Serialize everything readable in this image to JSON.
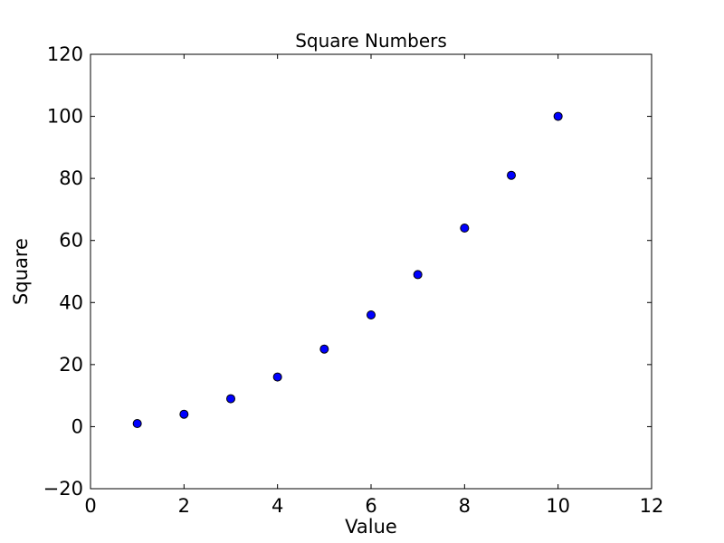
{
  "chart_data": {
    "type": "scatter",
    "title": "Square Numbers",
    "xlabel": "Value",
    "ylabel": "Square",
    "x": [
      1,
      2,
      3,
      4,
      5,
      6,
      7,
      8,
      9,
      10
    ],
    "y": [
      1,
      4,
      9,
      16,
      25,
      36,
      49,
      64,
      81,
      100
    ],
    "xlim": [
      0,
      12
    ],
    "ylim": [
      -20,
      120
    ],
    "xticks": [
      0,
      2,
      4,
      6,
      8,
      10,
      12
    ],
    "yticks": [
      -20,
      0,
      20,
      40,
      60,
      80,
      100,
      120
    ],
    "grid": false,
    "legend": null,
    "tick_direction": "in",
    "marker": {
      "shape": "circle",
      "color": "#0000ff",
      "edge_color": "#000000",
      "radius_px": 4.5
    },
    "spine_color": "#000000",
    "background_color": "#ffffff"
  }
}
